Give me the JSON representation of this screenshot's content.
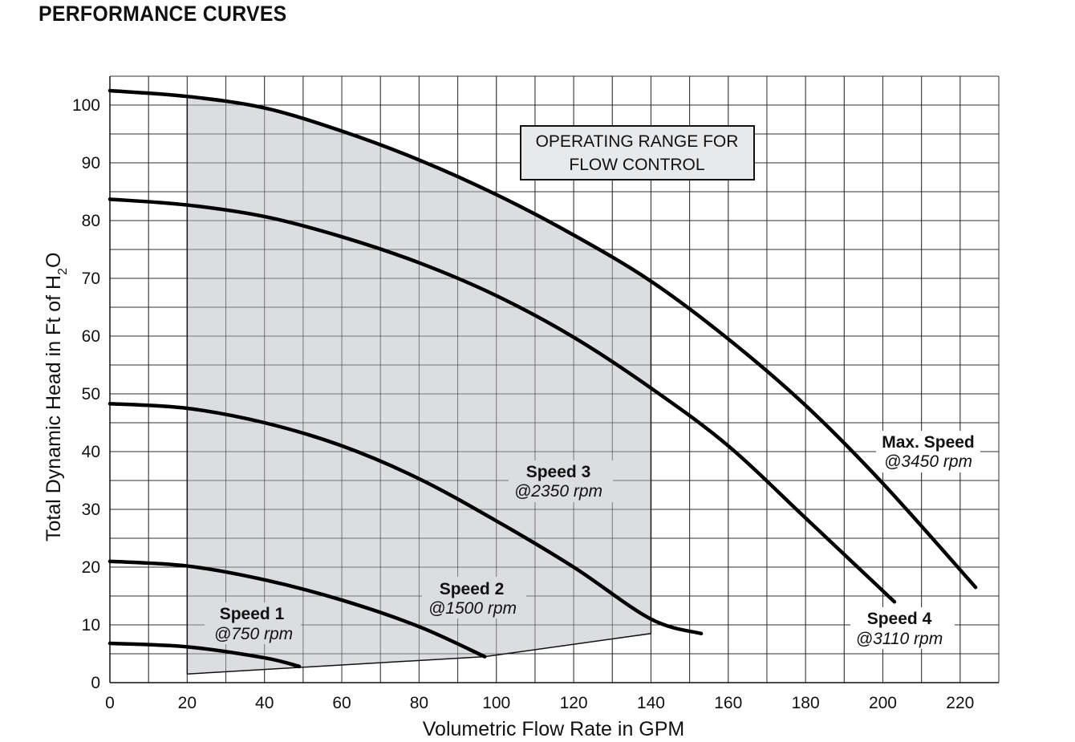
{
  "page_title": "PERFORMANCE CURVES",
  "chart_data": {
    "type": "line",
    "xlabel": "Volumetric Flow Rate in GPM",
    "ylabel_main": "Total Dynamic Head in Ft of H",
    "ylabel_sub": "2",
    "ylabel_tail": "O",
    "xlim": [
      0,
      230
    ],
    "ylim": [
      0,
      105
    ],
    "x_ticks": [
      0,
      20,
      40,
      60,
      80,
      100,
      120,
      140,
      160,
      180,
      200,
      220
    ],
    "y_ticks": [
      0,
      10,
      20,
      30,
      40,
      50,
      60,
      70,
      80,
      90,
      100
    ],
    "grid": true,
    "grid_step_x": 10,
    "grid_step_y": 5,
    "colors": {
      "curve": "#000000",
      "operating_range_fill": "#dcdde0",
      "grid": "#222222",
      "label_box_fill": "#e8e9eb"
    },
    "series": [
      {
        "name": "Max. Speed",
        "rpm_label": "@3450 rpm",
        "x": [
          0,
          20,
          40,
          60,
          80,
          100,
          120,
          140,
          160,
          180,
          200,
          224
        ],
        "y": [
          102.5,
          101.5,
          99.5,
          95.5,
          90.5,
          84.5,
          77.5,
          69.5,
          59.5,
          48.0,
          34.5,
          16.5
        ]
      },
      {
        "name": "Speed 4",
        "rpm_label": "@3110 rpm",
        "x": [
          0,
          20,
          40,
          60,
          80,
          100,
          120,
          140,
          160,
          180,
          203
        ],
        "y": [
          83.7,
          82.7,
          80.7,
          77.2,
          72.7,
          67.0,
          59.8,
          51.0,
          41.0,
          28.5,
          14.0
        ]
      },
      {
        "name": "Speed 3",
        "rpm_label": "@2350 rpm",
        "x": [
          0,
          20,
          40,
          60,
          80,
          100,
          120,
          140,
          153
        ],
        "y": [
          48.3,
          47.5,
          45.0,
          41.0,
          35.3,
          28.0,
          20.0,
          11.0,
          8.5
        ]
      },
      {
        "name": "Speed 2",
        "rpm_label": "@1500 rpm",
        "x": [
          0,
          20,
          40,
          60,
          80,
          97
        ],
        "y": [
          21.0,
          20.2,
          17.8,
          14.3,
          9.7,
          4.5
        ]
      },
      {
        "name": "Speed 1",
        "rpm_label": "@750 rpm",
        "x": [
          0,
          20,
          40,
          49
        ],
        "y": [
          6.8,
          6.2,
          4.3,
          2.8
        ]
      }
    ],
    "operating_range": {
      "label_line1": "OPERATING RANGE FOR",
      "label_line2": "FLOW CONTROL",
      "x": [
        20,
        20,
        30,
        40,
        60,
        80,
        100,
        120,
        140,
        140,
        97,
        20
      ],
      "y": [
        1.5,
        101.5,
        100.8,
        99.5,
        95.5,
        90.5,
        84.5,
        77.5,
        69.5,
        8.5,
        4.5,
        1.5
      ]
    }
  }
}
